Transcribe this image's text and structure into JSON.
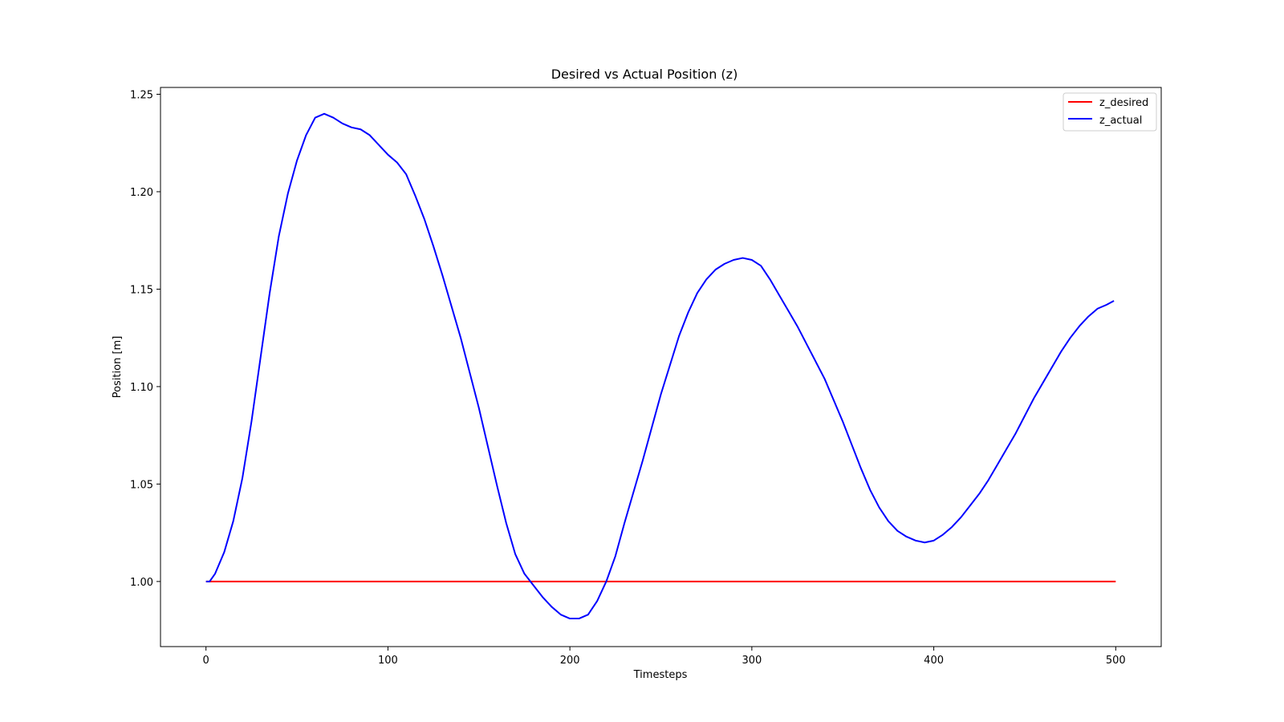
{
  "chart_data": {
    "type": "line",
    "title": "Desired vs Actual Position (z)",
    "xlabel": "Timesteps",
    "ylabel": "Position [m]",
    "xlim": [
      -25,
      525
    ],
    "ylim": [
      0.9666,
      1.2535
    ],
    "xticks": [
      0,
      100,
      200,
      300,
      400,
      500
    ],
    "yticks": [
      1.0,
      1.05,
      1.1,
      1.15,
      1.2,
      1.25
    ],
    "ytick_labels": [
      "1.00",
      "1.05",
      "1.10",
      "1.15",
      "1.20",
      "1.25"
    ],
    "grid": false,
    "legend_position": "top-right",
    "series": [
      {
        "name": "z_desired",
        "color": "#ff0000",
        "points": [
          [
            0,
            1.0
          ],
          [
            500,
            1.0
          ]
        ]
      },
      {
        "name": "z_actual",
        "color": "#0000ff",
        "points": [
          [
            0,
            1.0
          ],
          [
            2,
            1.0
          ],
          [
            5,
            1.004
          ],
          [
            10,
            1.015
          ],
          [
            15,
            1.031
          ],
          [
            20,
            1.053
          ],
          [
            25,
            1.082
          ],
          [
            30,
            1.115
          ],
          [
            35,
            1.148
          ],
          [
            40,
            1.177
          ],
          [
            45,
            1.199
          ],
          [
            50,
            1.216
          ],
          [
            55,
            1.229
          ],
          [
            60,
            1.238
          ],
          [
            65,
            1.24
          ],
          [
            70,
            1.238
          ],
          [
            75,
            1.235
          ],
          [
            80,
            1.233
          ],
          [
            85,
            1.232
          ],
          [
            90,
            1.229
          ],
          [
            95,
            1.224
          ],
          [
            100,
            1.219
          ],
          [
            105,
            1.215
          ],
          [
            110,
            1.209
          ],
          [
            115,
            1.198
          ],
          [
            120,
            1.186
          ],
          [
            125,
            1.172
          ],
          [
            130,
            1.157
          ],
          [
            135,
            1.141
          ],
          [
            140,
            1.125
          ],
          [
            145,
            1.107
          ],
          [
            150,
            1.089
          ],
          [
            155,
            1.069
          ],
          [
            160,
            1.049
          ],
          [
            165,
            1.03
          ],
          [
            170,
            1.014
          ],
          [
            175,
            1.004
          ],
          [
            180,
            0.998
          ],
          [
            185,
            0.992
          ],
          [
            190,
            0.987
          ],
          [
            195,
            0.983
          ],
          [
            200,
            0.981
          ],
          [
            205,
            0.981
          ],
          [
            210,
            0.983
          ],
          [
            215,
            0.99
          ],
          [
            220,
            1.0
          ],
          [
            225,
            1.013
          ],
          [
            230,
            1.03
          ],
          [
            235,
            1.046
          ],
          [
            240,
            1.062
          ],
          [
            245,
            1.079
          ],
          [
            250,
            1.096
          ],
          [
            255,
            1.111
          ],
          [
            260,
            1.126
          ],
          [
            265,
            1.138
          ],
          [
            270,
            1.148
          ],
          [
            275,
            1.155
          ],
          [
            280,
            1.16
          ],
          [
            285,
            1.163
          ],
          [
            290,
            1.165
          ],
          [
            295,
            1.166
          ],
          [
            300,
            1.165
          ],
          [
            305,
            1.162
          ],
          [
            310,
            1.155
          ],
          [
            315,
            1.147
          ],
          [
            320,
            1.139
          ],
          [
            325,
            1.131
          ],
          [
            330,
            1.122
          ],
          [
            335,
            1.113
          ],
          [
            340,
            1.104
          ],
          [
            345,
            1.093
          ],
          [
            350,
            1.082
          ],
          [
            355,
            1.07
          ],
          [
            360,
            1.058
          ],
          [
            365,
            1.047
          ],
          [
            370,
            1.038
          ],
          [
            375,
            1.031
          ],
          [
            380,
            1.026
          ],
          [
            385,
            1.023
          ],
          [
            390,
            1.021
          ],
          [
            395,
            1.02
          ],
          [
            400,
            1.021
          ],
          [
            405,
            1.024
          ],
          [
            410,
            1.028
          ],
          [
            415,
            1.033
          ],
          [
            420,
            1.039
          ],
          [
            425,
            1.045
          ],
          [
            430,
            1.052
          ],
          [
            435,
            1.06
          ],
          [
            440,
            1.068
          ],
          [
            445,
            1.076
          ],
          [
            450,
            1.085
          ],
          [
            455,
            1.094
          ],
          [
            460,
            1.102
          ],
          [
            465,
            1.11
          ],
          [
            470,
            1.118
          ],
          [
            475,
            1.125
          ],
          [
            480,
            1.131
          ],
          [
            485,
            1.136
          ],
          [
            490,
            1.14
          ],
          [
            495,
            1.142
          ],
          [
            499,
            1.144
          ]
        ]
      }
    ]
  }
}
